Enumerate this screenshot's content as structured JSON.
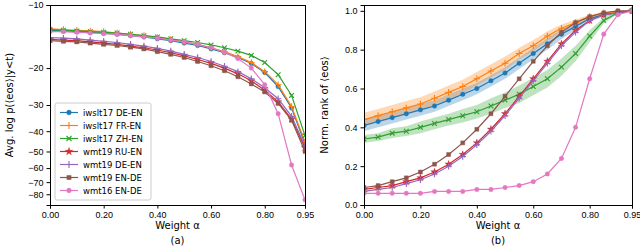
{
  "chart_data": [
    {
      "type": "line",
      "caption": "(a)",
      "x_label": "Weight α",
      "y_label": "Avg. log p(⟨eos⟩|y<t)",
      "log": "y",
      "grid": false,
      "legend": "lower left",
      "x": [
        0,
        0.05,
        0.1,
        0.15,
        0.2,
        0.25,
        0.3,
        0.35,
        0.4,
        0.45,
        0.5,
        0.55,
        0.6,
        0.65,
        0.7,
        0.75,
        0.8,
        0.85,
        0.9,
        0.95
      ],
      "xlim": [
        0,
        0.95
      ],
      "xticks": [
        {
          "value": 0,
          "label": "0.00"
        },
        {
          "value": 0.2,
          "label": "0.20"
        },
        {
          "value": 0.4,
          "label": "0.40"
        },
        {
          "value": 0.6,
          "label": "0.60"
        },
        {
          "value": 0.8,
          "label": "0.80"
        },
        {
          "value": 0.95,
          "label": "0.95"
        }
      ],
      "ylim": [
        -90,
        -10
      ],
      "yticks": [
        {
          "value": -10,
          "label": "−10"
        },
        {
          "value": -20,
          "label": "−20"
        },
        {
          "value": -30,
          "label": "−30"
        },
        {
          "value": -40,
          "label": "−40"
        },
        {
          "value": -50,
          "label": "−50"
        },
        {
          "value": -60,
          "label": "−60"
        },
        {
          "value": -70,
          "label": "−70"
        },
        {
          "value": -80,
          "label": "−80"
        }
      ],
      "series": [
        {
          "name": "iwslt17 DE-EN",
          "color": "#1f77b4",
          "marker": "circle",
          "values": [
            -13.2,
            -13.3,
            -13.4,
            -13.5,
            -13.6,
            -13.8,
            -14.0,
            -14.2,
            -14.5,
            -14.8,
            -15.2,
            -15.6,
            -16.2,
            -16.9,
            -17.8,
            -19.0,
            -21.0,
            -24.5,
            -31.0,
            -46.0
          ]
        },
        {
          "name": "iwslt17 FR-EN",
          "color": "#ff7f0e",
          "marker": "plus",
          "values": [
            -13.0,
            -13.1,
            -13.2,
            -13.3,
            -13.4,
            -13.6,
            -13.8,
            -14.0,
            -14.3,
            -14.6,
            -15.0,
            -15.4,
            -16.0,
            -16.7,
            -17.6,
            -18.8,
            -20.8,
            -24.0,
            -30.5,
            -45.0
          ]
        },
        {
          "name": "iwslt17 ZH-EN",
          "color": "#2ca02c",
          "marker": "x",
          "values": [
            -13.1,
            -13.2,
            -13.3,
            -13.4,
            -13.5,
            -13.6,
            -13.8,
            -14.0,
            -14.2,
            -14.5,
            -14.8,
            -15.1,
            -15.5,
            -16.0,
            -16.6,
            -17.4,
            -18.8,
            -21.5,
            -27.0,
            -42.0
          ]
        },
        {
          "name": "wmt19 RU-EN",
          "color": "#d62728",
          "marker": "star",
          "values": [
            -14.6,
            -14.7,
            -14.8,
            -15.0,
            -15.2,
            -15.4,
            -15.7,
            -16.0,
            -16.4,
            -16.9,
            -17.5,
            -18.2,
            -19.0,
            -20.0,
            -21.3,
            -23.0,
            -25.5,
            -29.0,
            -35.0,
            -48.0
          ]
        },
        {
          "name": "wmt19 DE-EN",
          "color": "#9467bd",
          "marker": "plus",
          "values": [
            -14.3,
            -14.4,
            -14.5,
            -14.7,
            -14.9,
            -15.1,
            -15.4,
            -15.7,
            -16.1,
            -16.6,
            -17.2,
            -17.8,
            -18.6,
            -19.6,
            -20.8,
            -22.5,
            -24.8,
            -28.0,
            -34.0,
            -47.0
          ]
        },
        {
          "name": "wmt19 EN-DE",
          "color": "#8c564b",
          "marker": "square",
          "values": [
            -14.8,
            -14.9,
            -15.0,
            -15.2,
            -15.4,
            -15.6,
            -15.9,
            -16.2,
            -16.7,
            -17.2,
            -17.8,
            -18.6,
            -19.5,
            -20.6,
            -22.0,
            -23.8,
            -26.0,
            -29.5,
            -35.5,
            -50.0
          ]
        },
        {
          "name": "wmt16 EN-DE",
          "color": "#e377c2",
          "marker": "circle",
          "values": [
            -13.4,
            -13.4,
            -13.5,
            -13.6,
            -13.7,
            -13.8,
            -14.0,
            -14.2,
            -14.4,
            -14.7,
            -15.0,
            -15.4,
            -16.0,
            -16.8,
            -18.0,
            -20.0,
            -24.0,
            -33.0,
            -58.0,
            -85.0
          ]
        }
      ]
    },
    {
      "type": "line",
      "caption": "(b)",
      "x_label": "Weight α",
      "y_label": "Norm. rank of ⟨eos⟩",
      "grid": false,
      "x": [
        0,
        0.05,
        0.1,
        0.15,
        0.2,
        0.25,
        0.3,
        0.35,
        0.4,
        0.45,
        0.5,
        0.55,
        0.6,
        0.65,
        0.7,
        0.75,
        0.8,
        0.85,
        0.9,
        0.95
      ],
      "xlim": [
        0,
        0.95
      ],
      "xticks": [
        {
          "value": 0,
          "label": "0.00"
        },
        {
          "value": 0.2,
          "label": "0.20"
        },
        {
          "value": 0.4,
          "label": "0.40"
        },
        {
          "value": 0.6,
          "label": "0.60"
        },
        {
          "value": 0.8,
          "label": "0.80"
        },
        {
          "value": 0.95,
          "label": "0.95"
        }
      ],
      "ylim": [
        0,
        1.03
      ],
      "yticks": [
        {
          "value": 0,
          "label": "0.0"
        },
        {
          "value": 0.2,
          "label": "0.2"
        },
        {
          "value": 0.4,
          "label": "0.4"
        },
        {
          "value": 0.6,
          "label": "0.6"
        },
        {
          "value": 0.8,
          "label": "0.8"
        },
        {
          "value": 1,
          "label": "1.0"
        }
      ],
      "series": [
        {
          "color": "#1f77b4",
          "marker": "circle",
          "values": [
            0.41,
            0.43,
            0.45,
            0.47,
            0.49,
            0.51,
            0.54,
            0.57,
            0.6,
            0.64,
            0.68,
            0.73,
            0.78,
            0.83,
            0.88,
            0.92,
            0.96,
            0.98,
            0.99,
            1.0
          ],
          "errors": [
            0.03,
            0.03,
            0.03,
            0.03,
            0.03,
            0.03,
            0.03,
            0.03,
            0.03,
            0.03,
            0.03,
            0.03,
            0.03,
            0.03,
            0.025,
            0.02,
            0.015,
            0.01,
            0.005,
            0.0
          ]
        },
        {
          "color": "#ff7f0e",
          "marker": "plus",
          "values": [
            0.44,
            0.46,
            0.48,
            0.5,
            0.52,
            0.55,
            0.58,
            0.61,
            0.65,
            0.69,
            0.73,
            0.78,
            0.82,
            0.87,
            0.91,
            0.94,
            0.97,
            0.99,
            0.995,
            1.0
          ],
          "errors": [
            0.035,
            0.035,
            0.035,
            0.035,
            0.035,
            0.035,
            0.035,
            0.035,
            0.035,
            0.035,
            0.035,
            0.03,
            0.03,
            0.025,
            0.02,
            0.015,
            0.01,
            0.005,
            0.003,
            0.0
          ]
        },
        {
          "color": "#2ca02c",
          "marker": "x",
          "values": [
            0.34,
            0.35,
            0.37,
            0.38,
            0.4,
            0.42,
            0.44,
            0.46,
            0.48,
            0.51,
            0.54,
            0.57,
            0.61,
            0.65,
            0.71,
            0.78,
            0.87,
            0.95,
            0.99,
            1.0
          ],
          "errors": [
            0.02,
            0.02,
            0.025,
            0.025,
            0.03,
            0.03,
            0.03,
            0.035,
            0.035,
            0.04,
            0.04,
            0.045,
            0.045,
            0.045,
            0.045,
            0.04,
            0.03,
            0.015,
            0.005,
            0.0
          ]
        },
        {
          "color": "#d62728",
          "marker": "star",
          "values": [
            0.08,
            0.09,
            0.1,
            0.12,
            0.14,
            0.17,
            0.21,
            0.26,
            0.32,
            0.39,
            0.47,
            0.56,
            0.65,
            0.74,
            0.83,
            0.9,
            0.95,
            0.98,
            0.99,
            1.0
          ]
        },
        {
          "color": "#9467bd",
          "marker": "plus",
          "values": [
            0.07,
            0.08,
            0.09,
            0.11,
            0.13,
            0.16,
            0.2,
            0.25,
            0.31,
            0.38,
            0.46,
            0.55,
            0.64,
            0.73,
            0.82,
            0.89,
            0.95,
            0.98,
            0.99,
            1.0
          ]
        },
        {
          "color": "#8c564b",
          "marker": "square",
          "values": [
            0.09,
            0.1,
            0.12,
            0.14,
            0.17,
            0.21,
            0.26,
            0.32,
            0.39,
            0.47,
            0.56,
            0.65,
            0.74,
            0.82,
            0.89,
            0.94,
            0.97,
            0.99,
            1.0,
            1.0
          ]
        },
        {
          "color": "#e377c2",
          "marker": "circle",
          "values": [
            0.06,
            0.06,
            0.06,
            0.06,
            0.06,
            0.07,
            0.07,
            0.07,
            0.08,
            0.08,
            0.09,
            0.1,
            0.12,
            0.16,
            0.24,
            0.4,
            0.65,
            0.88,
            0.98,
            1.0
          ]
        }
      ]
    }
  ]
}
